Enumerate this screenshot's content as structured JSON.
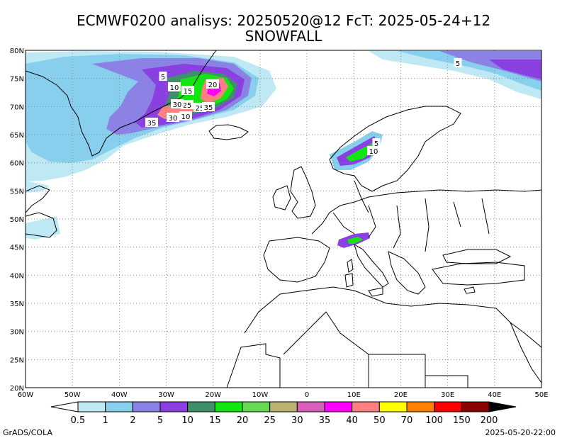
{
  "title_line1": "ECMWF0200 analisys: 20250520@12 FcT: 2025-05-24+12",
  "title_line2": "SNOWFALL",
  "footer_left": "GrADS/COLA",
  "footer_right": "2025-05-20-22:00",
  "lat_labels": [
    "80N",
    "75N",
    "70N",
    "65N",
    "60N",
    "55N",
    "50N",
    "45N",
    "40N",
    "35N",
    "30N",
    "25N",
    "20N"
  ],
  "lon_labels": [
    "60W",
    "50W",
    "40W",
    "30W",
    "20W",
    "10W",
    "0",
    "10E",
    "20E",
    "30E",
    "40E",
    "50E"
  ],
  "contour_labels": [
    "5",
    "10",
    "15",
    "20",
    "25",
    "30",
    "35",
    "30",
    "10",
    "25",
    "35",
    "5",
    "10",
    "5"
  ],
  "colorbar": {
    "labels": [
      "0.5",
      "1",
      "2",
      "5",
      "10",
      "15",
      "20",
      "25",
      "30",
      "35",
      "40",
      "50",
      "70",
      "100",
      "150",
      "200"
    ],
    "colors": [
      "#ffffff",
      "#bfe8f5",
      "#88cfee",
      "#8c82e6",
      "#8a3fe0",
      "#3f8f6a",
      "#11e611",
      "#66d855",
      "#b9b270",
      "#d65fb7",
      "#ff00ff",
      "#ff8080",
      "#ffff00",
      "#ff8000",
      "#ff0000",
      "#8b0000",
      "#000000"
    ]
  },
  "chart_data": {
    "type": "heatmap",
    "variable": "SNOWFALL",
    "xlim": [
      "60W",
      "50E"
    ],
    "ylim": [
      "20N",
      "80N"
    ],
    "grid": true,
    "legend": "bottom"
  }
}
